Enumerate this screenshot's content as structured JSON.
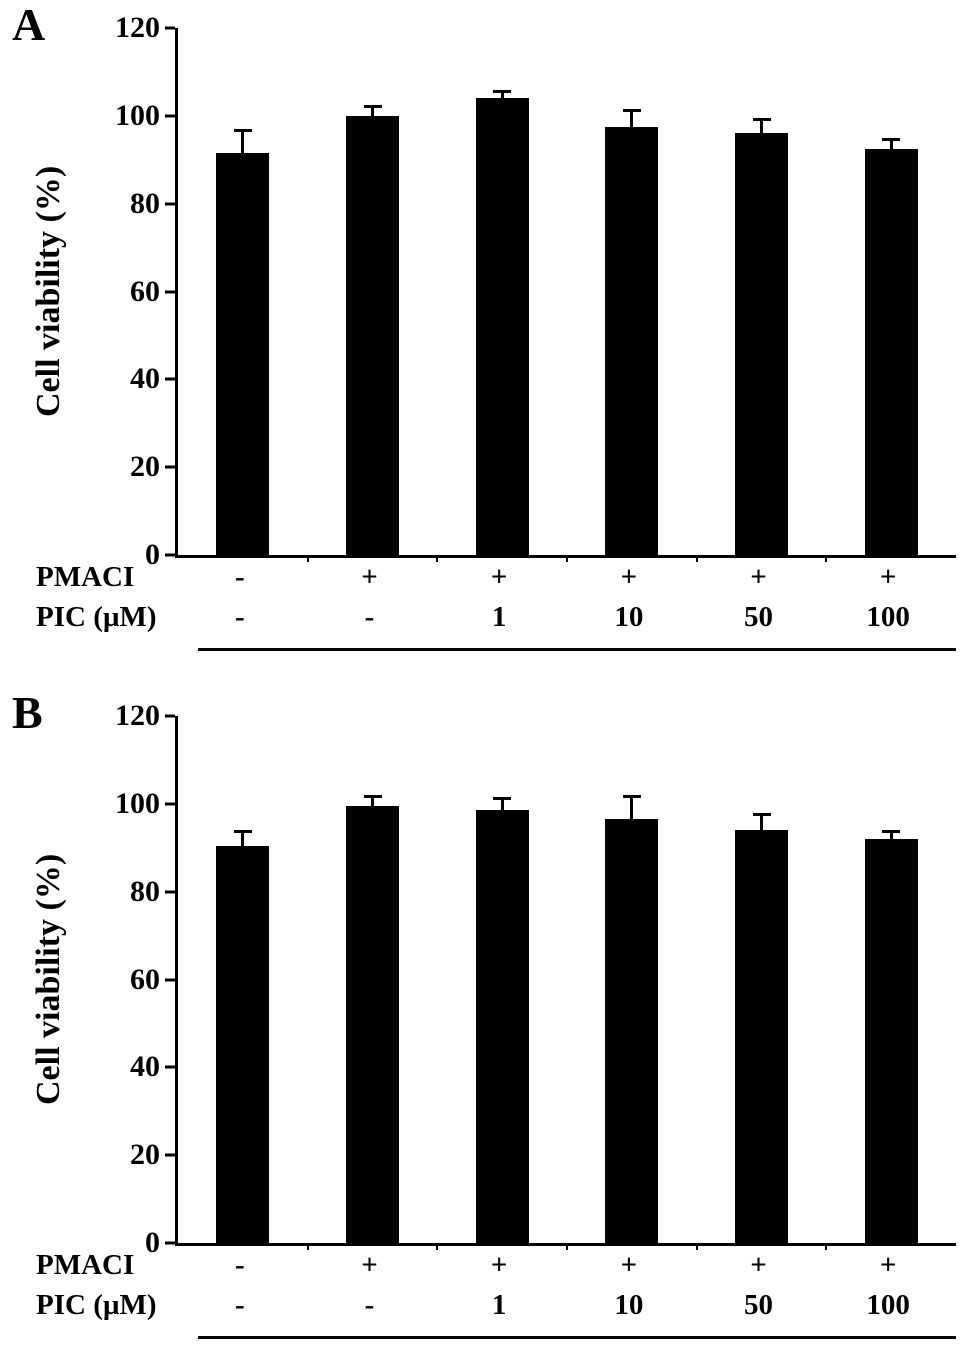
{
  "figure": {
    "background": "#ffffff",
    "bar_color": "#000000",
    "axis_color": "#000000"
  },
  "chart_data": [
    {
      "type": "bar",
      "panel_label": "A",
      "title": "",
      "xlabel": "",
      "ylabel": "Cell viability (%)",
      "ylim": [
        0,
        120
      ],
      "yticks": [
        0,
        20,
        40,
        60,
        80,
        100,
        120
      ],
      "values": [
        91.5,
        100,
        104,
        97.5,
        96,
        92.5
      ],
      "errors": [
        5,
        2,
        1.5,
        3.5,
        3,
        2
      ],
      "x_rows": [
        {
          "label": "PMACI",
          "values": [
            "-",
            "+",
            "+",
            "+",
            "+",
            "+"
          ]
        },
        {
          "label": "PIC (µM)",
          "values": [
            "-",
            "-",
            "1",
            "10",
            "50",
            "100"
          ]
        }
      ]
    },
    {
      "type": "bar",
      "panel_label": "B",
      "title": "",
      "xlabel": "",
      "ylabel": "Cell viability (%)",
      "ylim": [
        0,
        120
      ],
      "yticks": [
        0,
        20,
        40,
        60,
        80,
        100,
        120
      ],
      "values": [
        90.5,
        99.5,
        98.5,
        96.5,
        94,
        92
      ],
      "errors": [
        3,
        2,
        2.5,
        5,
        3.5,
        1.5
      ],
      "x_rows": [
        {
          "label": "PMACI",
          "values": [
            "-",
            "+",
            "+",
            "+",
            "+",
            "+"
          ]
        },
        {
          "label": "PIC (µM)",
          "values": [
            "-",
            "-",
            "1",
            "10",
            "50",
            "100"
          ]
        }
      ]
    }
  ]
}
